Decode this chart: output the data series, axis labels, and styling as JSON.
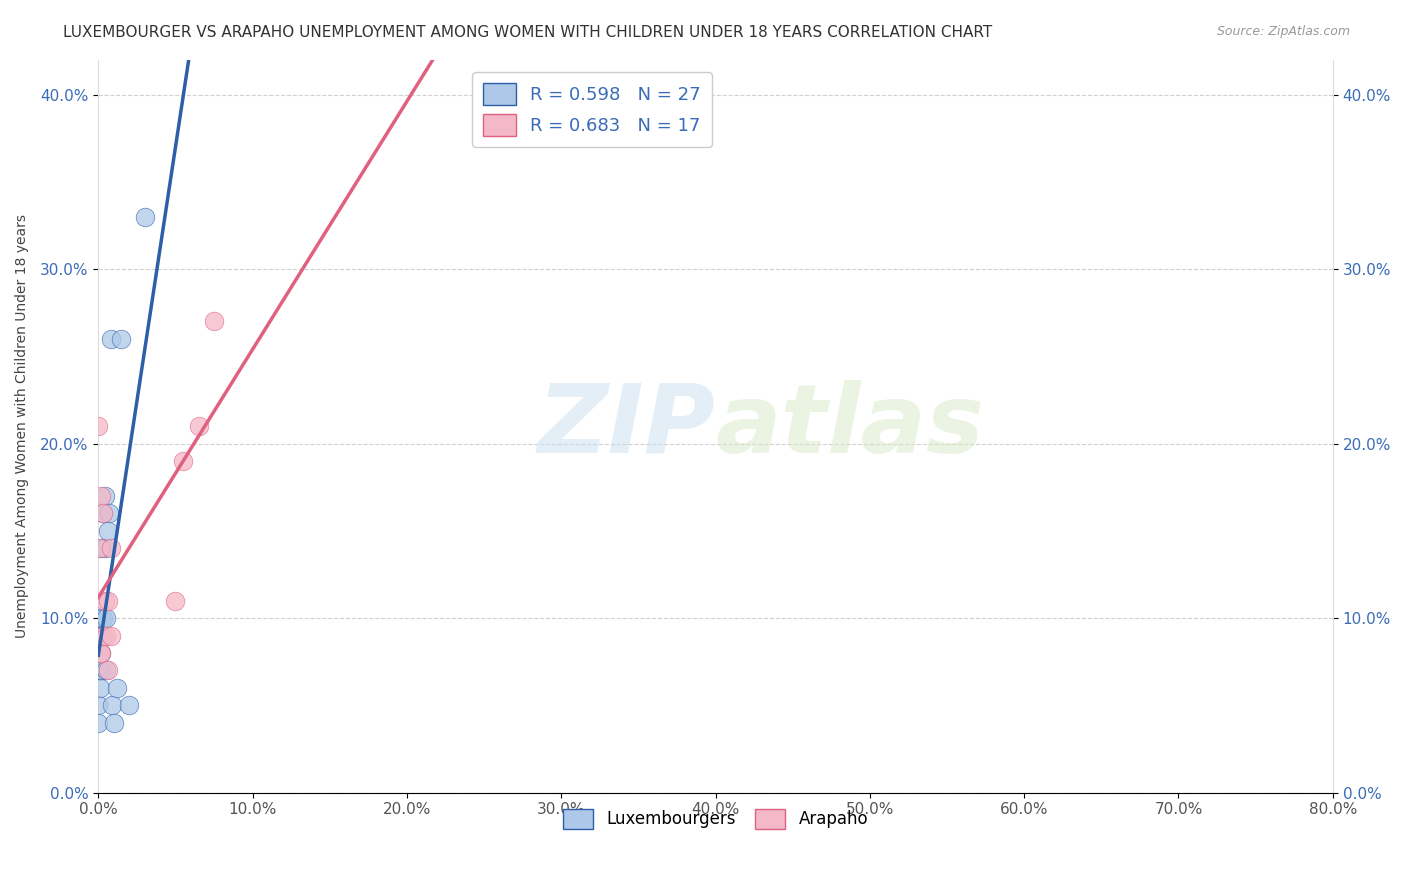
{
  "title": "LUXEMBOURGER VS ARAPAHO UNEMPLOYMENT AMONG WOMEN WITH CHILDREN UNDER 18 YEARS CORRELATION CHART",
  "source": "Source: ZipAtlas.com",
  "ylabel": "Unemployment Among Women with Children Under 18 years",
  "bottom_legend": [
    "Luxembourgers",
    "Arapaho"
  ],
  "legend_line1": "R = 0.598   N = 27",
  "legend_line2": "R = 0.683   N = 17",
  "lux_scatter_color": "#adc8e8",
  "lux_line_color": "#2d5fa8",
  "ara_scatter_color": "#f5b8c8",
  "ara_line_color": "#e06080",
  "lux_x": [
    0.0,
    0.0,
    0.001,
    0.001,
    0.001,
    0.001,
    0.001,
    0.002,
    0.002,
    0.002,
    0.002,
    0.003,
    0.003,
    0.003,
    0.004,
    0.004,
    0.005,
    0.005,
    0.006,
    0.007,
    0.008,
    0.009,
    0.01,
    0.012,
    0.015,
    0.02,
    0.03
  ],
  "lux_y": [
    0.04,
    0.05,
    0.06,
    0.07,
    0.07,
    0.08,
    0.09,
    0.07,
    0.08,
    0.1,
    0.14,
    0.09,
    0.1,
    0.16,
    0.14,
    0.17,
    0.07,
    0.1,
    0.15,
    0.16,
    0.26,
    0.05,
    0.04,
    0.06,
    0.26,
    0.05,
    0.33
  ],
  "ara_x": [
    0.0,
    0.001,
    0.001,
    0.002,
    0.002,
    0.003,
    0.003,
    0.004,
    0.005,
    0.006,
    0.006,
    0.008,
    0.008,
    0.05,
    0.055,
    0.065,
    0.075
  ],
  "ara_y": [
    0.21,
    0.08,
    0.14,
    0.08,
    0.17,
    0.09,
    0.16,
    0.11,
    0.09,
    0.07,
    0.11,
    0.09,
    0.14,
    0.11,
    0.19,
    0.21,
    0.27
  ],
  "xlim": [
    0.0,
    0.8
  ],
  "ylim": [
    0.0,
    0.42
  ],
  "xticks": [
    0.0,
    0.1,
    0.2,
    0.3,
    0.4,
    0.5,
    0.6,
    0.7,
    0.8
  ],
  "yticks": [
    0.0,
    0.1,
    0.2,
    0.3,
    0.4
  ],
  "background_color": "#ffffff",
  "grid_color": "#cccccc",
  "watermark_zip": "ZIP",
  "watermark_atlas": "atlas",
  "title_fontsize": 11,
  "axis_label_fontsize": 10,
  "tick_fontsize": 11,
  "right_tick_color": "#3b6cb7"
}
